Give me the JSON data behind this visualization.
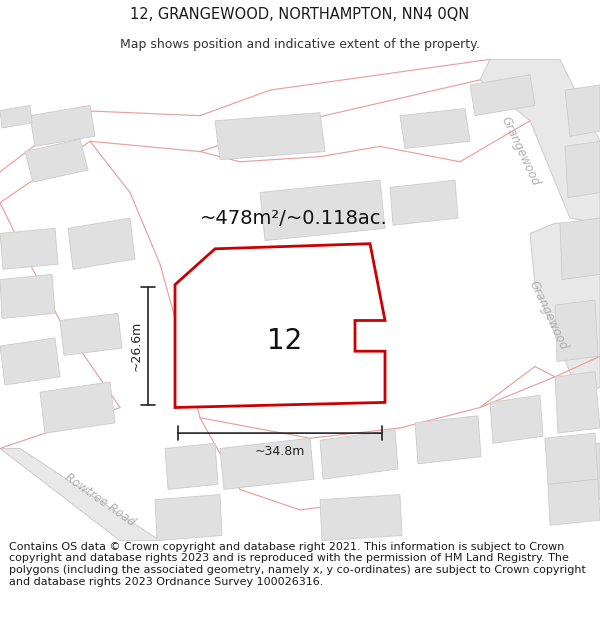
{
  "title": "12, GRANGEWOOD, NORTHAMPTON, NN4 0QN",
  "subtitle": "Map shows position and indicative extent of the property.",
  "footer": "Contains OS data © Crown copyright and database right 2021. This information is subject to Crown copyright and database rights 2023 and is reproduced with the permission of HM Land Registry. The polygons (including the associated geometry, namely x, y co-ordinates) are subject to Crown copyright and database rights 2023 Ordnance Survey 100026316.",
  "area_label": "~478m²/~0.118ac.",
  "width_label": "~34.8m",
  "height_label": "~26.6m",
  "property_number": "12",
  "bg_color": "#ffffff",
  "map_bg": "#ffffff",
  "road_stroke": "#e8a0a0",
  "road_fill": "#f5e8e8",
  "grangewood_road_fill": "#e8e8e8",
  "grangewood_road_stroke": "#cccccc",
  "building_fill": "#e0e0e0",
  "building_stroke": "#cccccc",
  "property_stroke": "#cc0000",
  "property_fill": "#ffffff",
  "road_label_color": "#b0b0b0",
  "dim_color": "#222222",
  "title_fontsize": 10.5,
  "subtitle_fontsize": 9,
  "area_fontsize": 14,
  "footer_fontsize": 8.0,
  "number_fontsize": 20
}
